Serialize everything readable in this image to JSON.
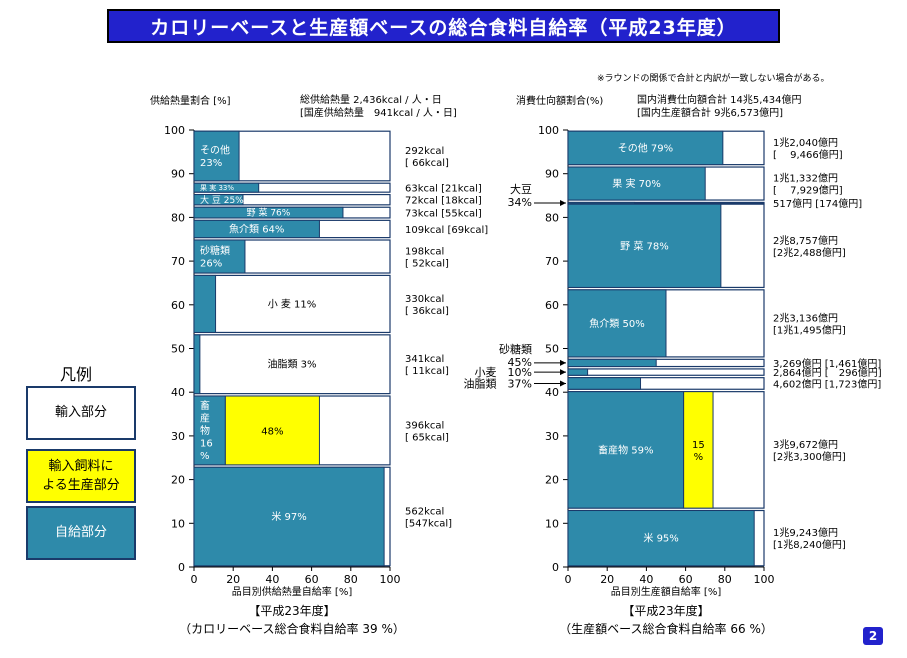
{
  "title": "カロリーベースと生産額ベースの総合食料自給率（平成23年度）",
  "note": "※ラウンドの関係で合計と内訳が一致しない場合がある。",
  "legend": {
    "title": "凡例",
    "items": [
      {
        "label": "輸入部分",
        "color": "#ffffff"
      },
      {
        "label": "輸入飼料に\nよる生産部分",
        "color": "#ffff00"
      },
      {
        "label": "自給部分",
        "color": "#2e8aaa"
      }
    ]
  },
  "page_number": "2",
  "colors": {
    "self": "#2e8aaa",
    "feed": "#ffff00",
    "import": "#ffffff"
  },
  "chart_data": [
    {
      "type": "bar",
      "ylabel": "供給熱量割合 [%]",
      "xlabel": "品目別供給熱量自給率 [%]",
      "totals": [
        "総供給熱量 2,436kcal / 人・日",
        "[国産供給熱量　941kcal / 人・日]"
      ],
      "footer": [
        "【平成23年度】",
        "（カロリーベース総合食料自給率 39 %）"
      ],
      "xlim": [
        0,
        100
      ],
      "ylim": [
        0,
        100
      ],
      "xticks": [
        "0",
        "20",
        "40",
        "60",
        "80",
        "100"
      ],
      "yticks": [
        "0",
        "10",
        "20",
        "30",
        "40",
        "50",
        "60",
        "70",
        "80",
        "90",
        "100"
      ],
      "items": [
        {
          "name": "米",
          "label": "米 97%",
          "y0": 0,
          "y1": 23.1,
          "self": 97,
          "feed": 0,
          "right": [
            "562kcal",
            "[547kcal]"
          ]
        },
        {
          "name": "畜産物",
          "label": "畜\n産\n物\n16\n%",
          "label2": "48%",
          "y0": 23.1,
          "y1": 39.4,
          "self": 16,
          "feed": 48,
          "right": [
            "396kcal",
            "[ 65kcal]"
          ]
        },
        {
          "name": "油脂類",
          "label": "油脂類 3%",
          "y0": 39.4,
          "y1": 53.4,
          "self": 3,
          "feed": 0,
          "right": [
            "341kcal",
            "[ 11kcal]"
          ]
        },
        {
          "name": "小麦",
          "label": "小 麦 11%",
          "y0": 53.4,
          "y1": 67.0,
          "self": 11,
          "feed": 0,
          "right": [
            "330kcal",
            "[ 36kcal]"
          ]
        },
        {
          "name": "砂糖類",
          "label": "砂糖類\n26%",
          "y0": 67.0,
          "y1": 75.1,
          "self": 26,
          "feed": 0,
          "right": [
            "198kcal",
            "[ 52kcal]"
          ]
        },
        {
          "name": "魚介類",
          "label": "魚介類 64%",
          "y0": 75.1,
          "y1": 79.6,
          "self": 64,
          "feed": 0,
          "right": [
            "109kcal [69kcal]"
          ]
        },
        {
          "name": "野菜",
          "label": "野 菜 76%",
          "y0": 79.6,
          "y1": 82.6,
          "self": 76,
          "feed": 0,
          "right": [
            "73kcal [55kcal]"
          ]
        },
        {
          "name": "大豆",
          "label": "大 豆 25%",
          "y0": 82.6,
          "y1": 85.5,
          "self": 25,
          "feed": 0,
          "right": [
            "72kcal [18kcal]"
          ]
        },
        {
          "name": "果実",
          "label": "果 実 33%",
          "y0": 85.5,
          "y1": 88.1,
          "self": 33,
          "feed": 0,
          "right": [
            "63kcal [21kcal]"
          ]
        },
        {
          "name": "その他",
          "label": "その他\n23%",
          "y0": 88.1,
          "y1": 100,
          "self": 23,
          "feed": 0,
          "right": [
            "292kcal",
            "[ 66kcal]"
          ]
        }
      ]
    },
    {
      "type": "bar",
      "ylabel": "消費仕向額割合(%)",
      "xlabel": "品目別生産額自給率 [%]",
      "totals": [
        "国内消費仕向額合計 14兆5,434億円",
        "[国内生産額合計 9兆6,573億円]"
      ],
      "footer": [
        "【平成23年度】",
        "（生産額ベース総合食料自給率 66 %）"
      ],
      "xlim": [
        0,
        100
      ],
      "ylim": [
        0,
        100
      ],
      "xticks": [
        "0",
        "20",
        "40",
        "60",
        "80",
        "100"
      ],
      "yticks": [
        "0",
        "10",
        "20",
        "30",
        "40",
        "50",
        "60",
        "70",
        "80",
        "90",
        "100"
      ],
      "items": [
        {
          "name": "米",
          "label": "米 95%",
          "y0": 0,
          "y1": 13.2,
          "self": 95,
          "feed": 0,
          "right": [
            "1兆9,243億円",
            "[1兆8,240億円]"
          ]
        },
        {
          "name": "畜産物",
          "label": "畜産物 59%",
          "label2": "15\n%",
          "y0": 13.2,
          "y1": 40.4,
          "self": 59,
          "feed": 15,
          "right": [
            "3兆9,672億円",
            "[2兆3,300億円]"
          ]
        },
        {
          "name": "油脂類",
          "label": "",
          "ext": "油脂類　37%",
          "y0": 40.4,
          "y1": 43.6,
          "self": 37,
          "feed": 0,
          "right": [
            "4,602億円 [1,723億円]"
          ]
        },
        {
          "name": "小麦",
          "label": "",
          "ext": "小麦　10%",
          "y0": 43.6,
          "y1": 45.6,
          "self": 10,
          "feed": 0,
          "right": [
            "2,864億円 [　296億円]"
          ]
        },
        {
          "name": "砂糖類",
          "label": "",
          "ext": "砂糖類\n45%",
          "y0": 45.6,
          "y1": 47.8,
          "self": 45,
          "feed": 0,
          "right": [
            "3,269億円 [1,461億円]"
          ]
        },
        {
          "name": "魚介類",
          "label": "魚介類 50%",
          "y0": 47.8,
          "y1": 63.7,
          "self": 50,
          "feed": 0,
          "right": [
            "2兆3,136億円",
            "[1兆1,495億円]"
          ]
        },
        {
          "name": "野菜",
          "label": "野 菜 78%",
          "y0": 63.7,
          "y1": 83.3,
          "self": 78,
          "feed": 0,
          "right": [
            "2兆8,757億円",
            "[2兆2,488億円]"
          ]
        },
        {
          "name": "大豆",
          "label": "",
          "ext": "大豆\n34%",
          "y0": 83.3,
          "y1": 83.7,
          "self": 34,
          "feed": 0,
          "right": [
            "517億円 [174億円]"
          ]
        },
        {
          "name": "果実",
          "label": "果 実 70%",
          "y0": 83.7,
          "y1": 91.8,
          "self": 70,
          "feed": 0,
          "right": [
            "1兆1,332億円",
            "[　 7,929億円]"
          ]
        },
        {
          "name": "その他",
          "label": "その他 79%",
          "y0": 91.8,
          "y1": 100,
          "self": 79,
          "feed": 0,
          "right": [
            "1兆2,040億円",
            "[　 9,466億円]"
          ]
        }
      ]
    }
  ]
}
